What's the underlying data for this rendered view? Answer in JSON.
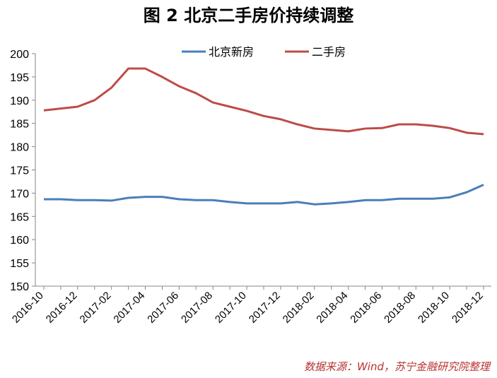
{
  "chart_data": {
    "type": "line",
    "title": "图 2  北京二手房价持续调整",
    "xlabel": "",
    "ylabel": "",
    "ylim": [
      150,
      200
    ],
    "yticks": [
      150,
      155,
      160,
      165,
      170,
      175,
      180,
      185,
      190,
      195,
      200
    ],
    "x": [
      "2016-10",
      "2016-11",
      "2016-12",
      "2017-01",
      "2017-02",
      "2017-03",
      "2017-04",
      "2017-05",
      "2017-06",
      "2017-07",
      "2017-08",
      "2017-09",
      "2017-10",
      "2017-11",
      "2017-12",
      "2018-01",
      "2018-02",
      "2018-03",
      "2018-04",
      "2018-05",
      "2018-06",
      "2018-07",
      "2018-08",
      "2018-09",
      "2018-10",
      "2018-11",
      "2018-12"
    ],
    "xtick_labels": [
      "2016-10",
      "2016-12",
      "2017-02",
      "2017-04",
      "2017-06",
      "2017-08",
      "2017-10",
      "2017-12",
      "2018-02",
      "2018-04",
      "2018-06",
      "2018-08",
      "2018-10",
      "2018-12"
    ],
    "grid": false,
    "legend": "top-center",
    "series": [
      {
        "name": "北京新房",
        "color": "#4a7ebb",
        "values": [
          168.7,
          168.7,
          168.5,
          168.5,
          168.4,
          169.0,
          169.2,
          169.2,
          168.7,
          168.5,
          168.5,
          168.1,
          167.8,
          167.8,
          167.8,
          168.1,
          167.6,
          167.8,
          168.1,
          168.5,
          168.5,
          168.8,
          168.8,
          168.8,
          169.1,
          170.2,
          171.8
        ]
      },
      {
        "name": "二手房",
        "color": "#be4b48",
        "values": [
          187.8,
          188.2,
          188.6,
          190.0,
          192.7,
          196.8,
          196.8,
          195.0,
          193.0,
          191.5,
          189.5,
          188.6,
          187.7,
          186.6,
          185.9,
          184.8,
          183.9,
          183.6,
          183.3,
          183.9,
          184.0,
          184.8,
          184.8,
          184.5,
          184.0,
          183.0,
          182.7
        ]
      }
    ]
  },
  "source": "数据来源：Wind，苏宁金融研究院整理"
}
